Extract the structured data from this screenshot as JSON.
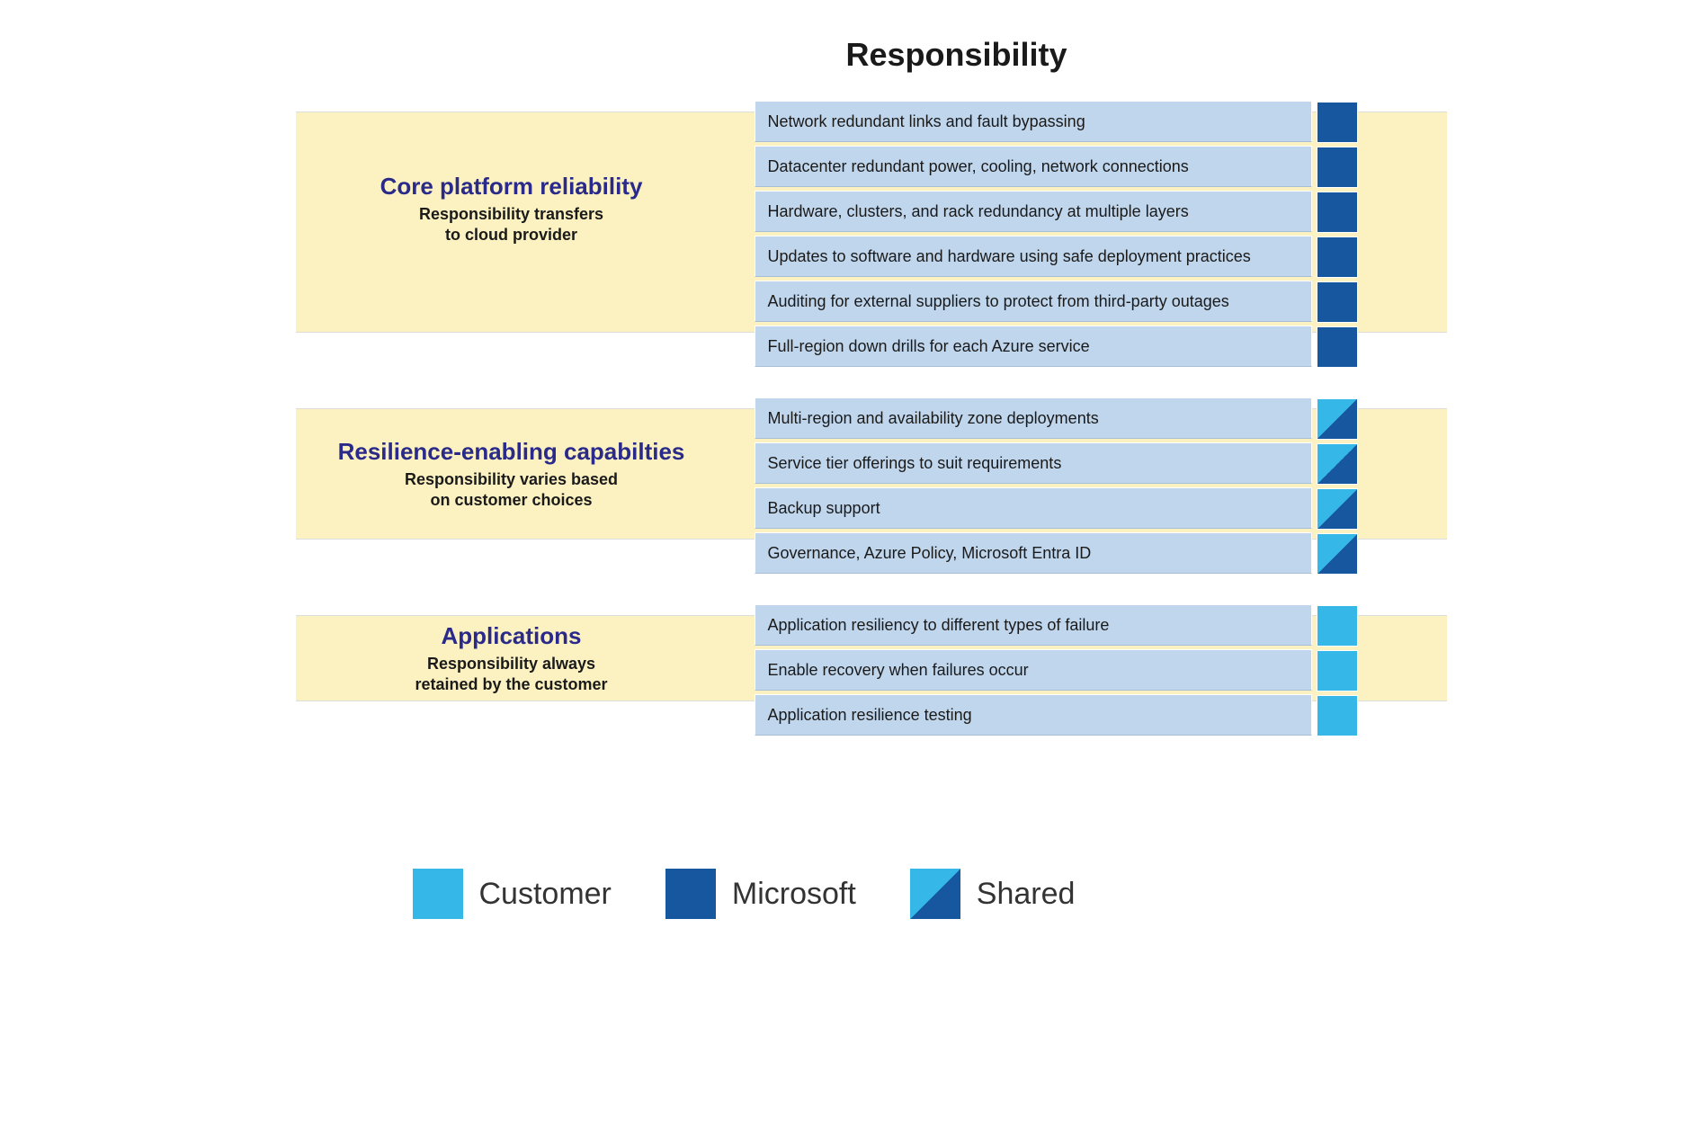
{
  "title": "Responsibility",
  "colors": {
    "row_bg": "#c0d6ed",
    "group_bg": "#fcf2c1",
    "microsoft": "#1757a0",
    "customer": "#35b7e8",
    "title_color_1": "#2a2a8a",
    "title_color_2": "#2a2a8a",
    "title_color_3": "#2a2a8a"
  },
  "legend": {
    "customer": "Customer",
    "microsoft": "Microsoft",
    "shared": "Shared"
  },
  "groups": [
    {
      "title": "Core platform reliability",
      "subtitle": "Responsibility transfers\nto cloud provider",
      "title_color": "#2a2a8a",
      "bg_top_row": 0,
      "bg_height_rows": 5,
      "label_center_row": 2,
      "items": [
        {
          "label": "Network redundant links and fault bypassing",
          "owner": "microsoft"
        },
        {
          "label": "Datacenter redundant power, cooling, network connections",
          "owner": "microsoft"
        },
        {
          "label": "Hardware, clusters, and rack redundancy at multiple layers",
          "owner": "microsoft"
        },
        {
          "label": "Updates to software and hardware using safe deployment practices",
          "owner": "microsoft"
        },
        {
          "label": "Auditing for external suppliers to protect from third-party outages",
          "owner": "microsoft"
        },
        {
          "label": "Full-region down drills for each Azure service",
          "owner": "microsoft"
        }
      ]
    },
    {
      "title": "Resilience-enabling capabilties",
      "subtitle": "Responsibility varies based\non customer choices",
      "title_color": "#2a2a8a",
      "bg_top_row": 0,
      "bg_height_rows": 3,
      "label_center_row": 1.3,
      "items": [
        {
          "label": "Multi-region and availability zone deployments",
          "owner": "shared"
        },
        {
          "label": "Service tier offerings to suit requirements",
          "owner": "shared"
        },
        {
          "label": "Backup support",
          "owner": "shared"
        },
        {
          "label": "Governance, Azure Policy, Microsoft Entra ID",
          "owner": "shared"
        }
      ]
    },
    {
      "title": "Applications",
      "subtitle": "Responsibility always\nretained by the customer",
      "title_color": "#2a2a8a",
      "bg_top_row": 0,
      "bg_height_rows": 2,
      "label_center_row": 0.8,
      "items": [
        {
          "label": "Application resiliency to different types of failure",
          "owner": "customer"
        },
        {
          "label": "Enable recovery when failures occur",
          "owner": "customer"
        },
        {
          "label": "Application resilience testing",
          "owner": "customer"
        }
      ]
    }
  ]
}
